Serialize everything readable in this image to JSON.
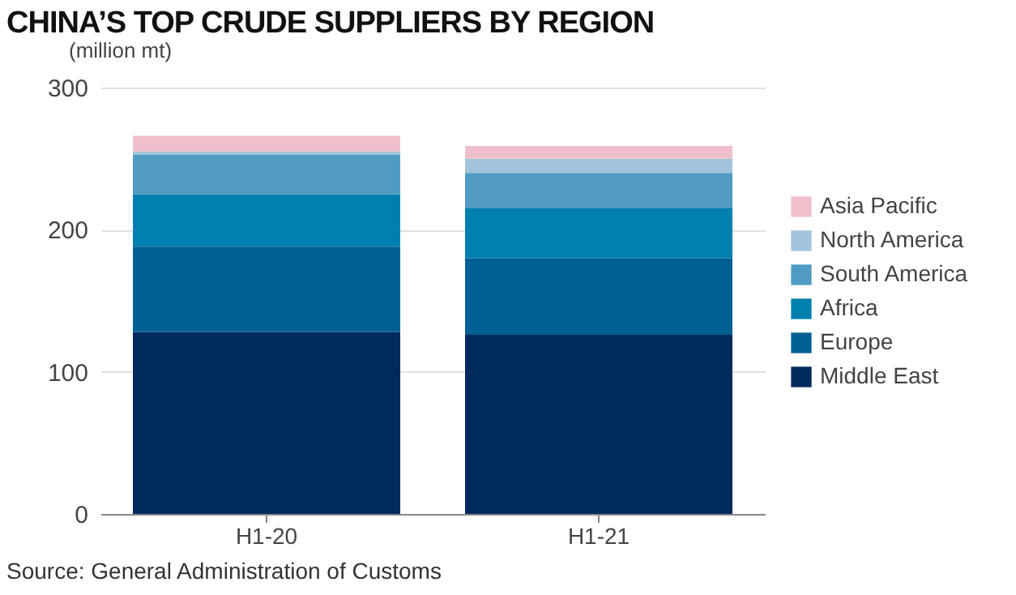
{
  "chart_data": {
    "type": "bar",
    "title": "CHINA’S TOP CRUDE SUPPLIERS BY REGION",
    "ylabel": "(million mt)",
    "annotations": [
      "Source: General Administration of Customs"
    ],
    "categories": [
      "H1-20",
      "H1-21"
    ],
    "stacked": true,
    "series": [
      {
        "name": "Middle East",
        "color": "#002a5c",
        "values": [
          128,
          126
        ]
      },
      {
        "name": "Europe",
        "color": "#005f93",
        "values": [
          60,
          54
        ]
      },
      {
        "name": "Africa",
        "color": "#0080ae",
        "values": [
          37,
          35
        ]
      },
      {
        "name": "South America",
        "color": "#4f9bc2",
        "values": [
          28,
          25
        ]
      },
      {
        "name": "North America",
        "color": "#a2c4dc",
        "values": [
          2,
          10
        ]
      },
      {
        "name": "Asia Pacific",
        "color": "#efc0cb",
        "values": [
          11,
          9
        ]
      }
    ],
    "ylim": [
      0,
      300
    ],
    "yticks": [
      0,
      100,
      200,
      300
    ],
    "grid": "y",
    "legend": "right"
  }
}
